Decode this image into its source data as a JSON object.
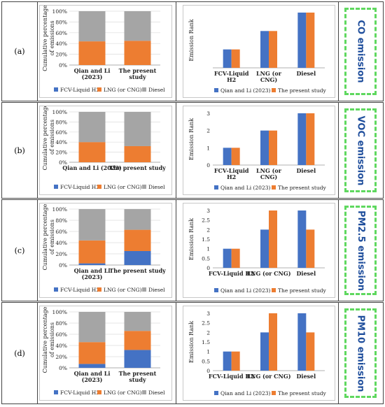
{
  "colors": {
    "fcv": "#4472C4",
    "lng": "#ED7D31",
    "diesel": "#A5A5A5",
    "emission_text": "#1f4e9c",
    "emission_border": "#5fd85f"
  },
  "rows": [
    {
      "label": "(a)",
      "emission": "CO emission",
      "stack": {
        "ylabel": "Cumulative percentage of emissions",
        "yticks": [
          "0%",
          "20%",
          "40%",
          "60%",
          "80%",
          "100%"
        ],
        "legend": [
          "FCV-Liquid H2",
          "LNG (or CNG)",
          "Diesel"
        ],
        "categories": [
          [
            "Qian and Li",
            "(2023)"
          ],
          [
            "The present",
            "study"
          ]
        ],
        "fcv": [
          0,
          0
        ],
        "lng": [
          44,
          45
        ],
        "diesel": [
          56,
          55
        ]
      },
      "rank": {
        "ylabel": "Emission Rank",
        "ymax": 3,
        "yticks": [],
        "categories": [
          [
            "FCV-Liquid",
            "H2"
          ],
          [
            "LNG (or",
            "CNG)"
          ],
          [
            "Diesel"
          ]
        ],
        "legend": [
          "Qian and Li (2023)",
          "The present study"
        ],
        "qian": [
          1,
          2,
          3
        ],
        "present": [
          1,
          2,
          3
        ]
      }
    },
    {
      "label": "(b)",
      "emission": "VOC emission",
      "stack": {
        "ylabel": "Cumulative percentage of emissions",
        "yticks": [
          "0%",
          "20%",
          "40%",
          "60%",
          "80%",
          "100%"
        ],
        "legend": [
          "FCV-Liquid H2",
          "LNG (or CNG)",
          "Diesel"
        ],
        "categories": [
          [
            "Qian and Li (2023)"
          ],
          [
            "The present study"
          ]
        ],
        "fcv": [
          0,
          0
        ],
        "lng": [
          40,
          32
        ],
        "diesel": [
          60,
          68
        ]
      },
      "rank": {
        "ylabel": "Emission Rank",
        "ymax": 3,
        "yticks": [
          "0",
          "1",
          "2",
          "3"
        ],
        "categories": [
          [
            "FCV-Liquid",
            "H2"
          ],
          [
            "LNG (or",
            "CNG)"
          ],
          [
            "Diesel"
          ]
        ],
        "legend": [
          "Qian and Li (2023)",
          "The present study"
        ],
        "qian": [
          1,
          2,
          3
        ],
        "present": [
          1,
          2,
          3
        ]
      }
    },
    {
      "label": "(c)",
      "emission": "PM2.5 emission",
      "stack": {
        "ylabel": "Cumulative percentage of emissions",
        "yticks": [
          "0%",
          "20%",
          "40%",
          "60%",
          "80%",
          "100%"
        ],
        "legend": [
          "FCV-Liquid H2",
          "LNG (or CNG)",
          "Diesel"
        ],
        "categories": [
          [
            "Qian and Li",
            "(2023)"
          ],
          [
            "The present study"
          ]
        ],
        "fcv": [
          3,
          25
        ],
        "lng": [
          41,
          38
        ],
        "diesel": [
          56,
          37
        ]
      },
      "rank": {
        "ylabel": "Emission Rank",
        "ymax": 3,
        "yticks": [
          "0",
          "0.5",
          "1",
          "1.5",
          "2",
          "2.5",
          "3"
        ],
        "categories": [
          [
            "FCV-Liquid H2"
          ],
          [
            "LNG (or CNG)"
          ],
          [
            "Diesel"
          ]
        ],
        "legend": [
          "Qian and Li (2023)",
          "The present study"
        ],
        "qian": [
          1,
          2,
          3
        ],
        "present": [
          1,
          3,
          2
        ]
      }
    },
    {
      "label": "(d)",
      "emission": "PM10 emission",
      "stack": {
        "ylabel": "Cumulative percentage of emissions",
        "yticks": [
          "0%",
          "20%",
          "40%",
          "60%",
          "80%",
          "100%"
        ],
        "legend": [
          "FCV-Liquid H2",
          "LNG (or CNG)",
          "Diesel"
        ],
        "categories": [
          [
            "Qian and Li",
            "(2023)"
          ],
          [
            "The present",
            "study"
          ]
        ],
        "fcv": [
          7,
          32
        ],
        "lng": [
          39,
          34
        ],
        "diesel": [
          54,
          34
        ]
      },
      "rank": {
        "ylabel": "Emission Rank",
        "ymax": 3,
        "yticks": [
          "0",
          "0.5",
          "1",
          "1.5",
          "2",
          "2.5",
          "3"
        ],
        "categories": [
          [
            "FCV-Liquid H2"
          ],
          [
            "LNG (or CNG)"
          ],
          [
            "Diesel"
          ]
        ],
        "legend": [
          "Qian and Li (2023)",
          "The present study"
        ],
        "qian": [
          1,
          2,
          3
        ],
        "present": [
          1,
          3,
          2
        ]
      }
    }
  ],
  "chart_data": [
    {
      "type": "bar",
      "stacked": true,
      "title": "",
      "ylabel": "Cumulative percentage of emissions",
      "categories": [
        "Qian and Li (2023)",
        "The present study"
      ],
      "series": [
        {
          "name": "FCV-Liquid H2",
          "values": [
            0,
            0
          ]
        },
        {
          "name": "LNG (or CNG)",
          "values": [
            44,
            45
          ]
        },
        {
          "name": "Diesel",
          "values": [
            56,
            55
          ]
        }
      ],
      "ylim": [
        0,
        100
      ]
    },
    {
      "type": "bar",
      "ylabel": "Emission Rank",
      "categories": [
        "FCV-Liquid H2",
        "LNG (or CNG)",
        "Diesel"
      ],
      "series": [
        {
          "name": "Qian and Li (2023)",
          "values": [
            1,
            2,
            3
          ]
        },
        {
          "name": "The present study",
          "values": [
            1,
            2,
            3
          ]
        }
      ],
      "ylim": [
        0,
        3
      ]
    },
    {
      "type": "bar",
      "stacked": true,
      "ylabel": "Cumulative percentage of emissions",
      "categories": [
        "Qian and Li (2023)",
        "The present study"
      ],
      "series": [
        {
          "name": "FCV-Liquid H2",
          "values": [
            0,
            0
          ]
        },
        {
          "name": "LNG (or CNG)",
          "values": [
            40,
            32
          ]
        },
        {
          "name": "Diesel",
          "values": [
            60,
            68
          ]
        }
      ],
      "ylim": [
        0,
        100
      ]
    },
    {
      "type": "bar",
      "ylabel": "Emission Rank",
      "categories": [
        "FCV-Liquid H2",
        "LNG (or CNG)",
        "Diesel"
      ],
      "series": [
        {
          "name": "Qian and Li (2023)",
          "values": [
            1,
            2,
            3
          ]
        },
        {
          "name": "The present study",
          "values": [
            1,
            2,
            3
          ]
        }
      ],
      "ylim": [
        0,
        3
      ]
    },
    {
      "type": "bar",
      "stacked": true,
      "ylabel": "Cumulative percentage of emissions",
      "categories": [
        "Qian and Li (2023)",
        "The present study"
      ],
      "series": [
        {
          "name": "FCV-Liquid H2",
          "values": [
            3,
            25
          ]
        },
        {
          "name": "LNG (or CNG)",
          "values": [
            41,
            38
          ]
        },
        {
          "name": "Diesel",
          "values": [
            56,
            37
          ]
        }
      ],
      "ylim": [
        0,
        100
      ]
    },
    {
      "type": "bar",
      "ylabel": "Emission Rank",
      "categories": [
        "FCV-Liquid H2",
        "LNG (or CNG)",
        "Diesel"
      ],
      "series": [
        {
          "name": "Qian and Li (2023)",
          "values": [
            1,
            2,
            3
          ]
        },
        {
          "name": "The present study",
          "values": [
            1,
            3,
            2
          ]
        }
      ],
      "ylim": [
        0,
        3
      ]
    },
    {
      "type": "bar",
      "stacked": true,
      "ylabel": "Cumulative percentage of emissions",
      "categories": [
        "Qian and Li (2023)",
        "The present study"
      ],
      "series": [
        {
          "name": "FCV-Liquid H2",
          "values": [
            7,
            32
          ]
        },
        {
          "name": "LNG (or CNG)",
          "values": [
            39,
            34
          ]
        },
        {
          "name": "Diesel",
          "values": [
            54,
            34
          ]
        }
      ],
      "ylim": [
        0,
        100
      ]
    },
    {
      "type": "bar",
      "ylabel": "Emission Rank",
      "categories": [
        "FCV-Liquid H2",
        "LNG (or CNG)",
        "Diesel"
      ],
      "series": [
        {
          "name": "Qian and Li (2023)",
          "values": [
            1,
            2,
            3
          ]
        },
        {
          "name": "The present study",
          "values": [
            1,
            3,
            2
          ]
        }
      ],
      "ylim": [
        0,
        3
      ]
    }
  ]
}
